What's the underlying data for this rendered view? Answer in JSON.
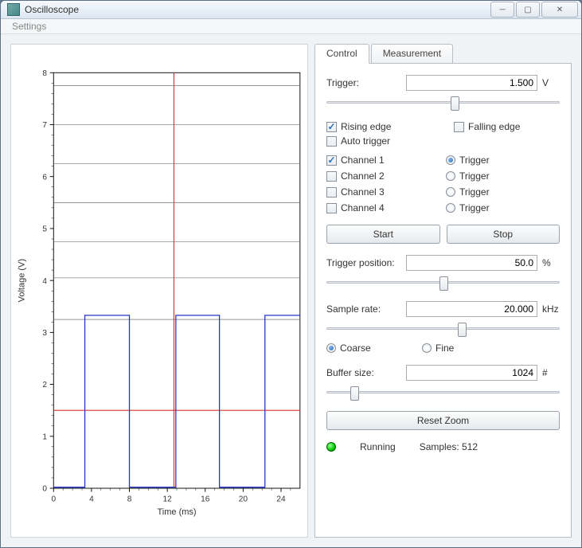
{
  "window": {
    "title": "Oscilloscope",
    "menu": {
      "settings": "Settings"
    }
  },
  "tabs": {
    "control": "Control",
    "measurement": "Measurement",
    "active": 0
  },
  "control": {
    "trigger_label": "Trigger:",
    "trigger_value": "1.500",
    "trigger_unit": "V",
    "trigger_slider_pct": 55,
    "rising_edge_label": "Rising edge",
    "rising_edge_checked": true,
    "falling_edge_label": "Falling edge",
    "falling_edge_checked": false,
    "auto_trigger_label": "Auto trigger",
    "auto_trigger_checked": false,
    "channels": [
      {
        "label": "Channel 1",
        "checked": true
      },
      {
        "label": "Channel 2",
        "checked": false
      },
      {
        "label": "Channel 3",
        "checked": false
      },
      {
        "label": "Channel 4",
        "checked": false
      }
    ],
    "channel_trigger_label": "Trigger",
    "channel_trigger_selected": 0,
    "start_label": "Start",
    "stop_label": "Stop",
    "trigpos_label": "Trigger position:",
    "trigpos_value": "50.0",
    "trigpos_unit": "%",
    "trigpos_slider_pct": 50,
    "sample_label": "Sample rate:",
    "sample_value": "20.000",
    "sample_unit": "kHz",
    "sample_slider_pct": 58,
    "coarse_label": "Coarse",
    "fine_label": "Fine",
    "coarse_fine_selected": 0,
    "buffer_label": "Buffer size:",
    "buffer_value": "1024",
    "buffer_unit": "#",
    "buffer_slider_pct": 12,
    "reset_zoom_label": "Reset Zoom",
    "status_text": "Running",
    "samples_text": "Samples: 512"
  },
  "chart": {
    "type": "line",
    "axis_color": "#000000",
    "grid_color": "#555555",
    "grid_width": 0.6,
    "background_color": "#ffffff",
    "xlabel": "Time (ms)",
    "ylabel": "Voltage (V)",
    "label_fontsize": 12,
    "tick_fontsize": 11,
    "xlim": [
      0,
      26
    ],
    "ylim": [
      0,
      8
    ],
    "xticks": [
      0,
      4,
      8,
      12,
      16,
      20,
      24
    ],
    "yticks": [
      0,
      1,
      2,
      3,
      4,
      5,
      6,
      7,
      8
    ],
    "xminor_step": 1,
    "yminor_step": 0.2,
    "mid_gridlines_y": [
      3.25,
      4.05,
      4.75,
      5.5,
      6.25,
      7.0,
      7.75
    ],
    "trigger_line": {
      "x": 12.7,
      "y": 1.5,
      "color": "#dc3030",
      "width": 1.2
    },
    "trace": {
      "color": "#2434c8",
      "width": 1.4,
      "high": 3.33,
      "low": 0.02,
      "edges_x": [
        3.3,
        8.0,
        12.9,
        17.5,
        22.3
      ],
      "start_level": "low",
      "xend": 26
    }
  }
}
